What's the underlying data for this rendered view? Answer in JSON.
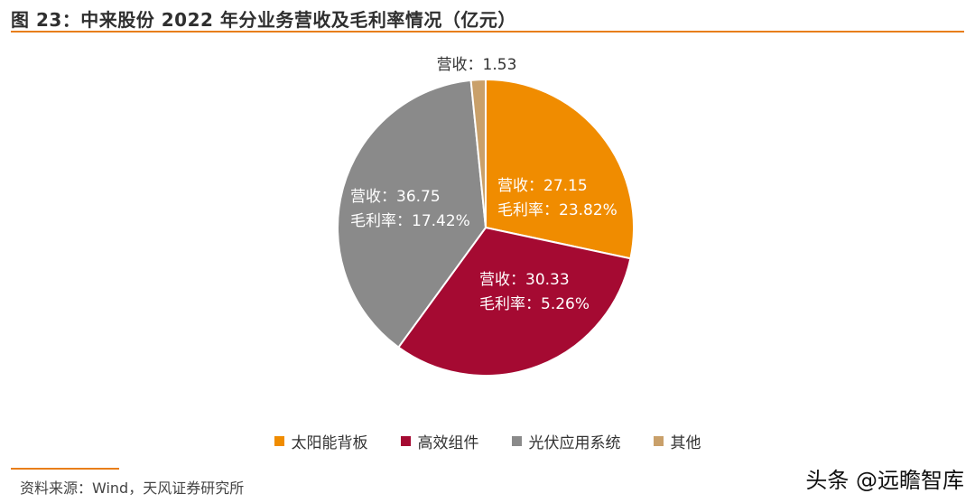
{
  "header": {
    "title": "图 23：中来股份 2022 年分业务营收及毛利率情况（亿元）"
  },
  "chart_data": {
    "type": "pie",
    "title": "图 23：中来股份 2022 年分业务营收及毛利率情况（亿元）",
    "revenue_prefix": "营收：",
    "margin_prefix": "毛利率：",
    "slices": [
      {
        "name": "太阳能背板",
        "revenue": 27.15,
        "revenue_text": "27.15",
        "margin_text": "23.82%",
        "color": "#f08c00"
      },
      {
        "name": "高效组件",
        "revenue": 30.33,
        "revenue_text": "30.33",
        "margin_text": "5.26%",
        "color": "#a50a32"
      },
      {
        "name": "光伏应用系统",
        "revenue": 36.75,
        "revenue_text": "36.75",
        "margin_text": "17.42%",
        "color": "#8a8a8a"
      },
      {
        "name": "其他",
        "revenue": 1.53,
        "revenue_text": "1.53",
        "margin_text": "",
        "color": "#c9a06a"
      }
    ],
    "legend_position": "bottom"
  },
  "footer": {
    "source": "资料来源：Wind，天风证券研究所",
    "watermark": "头条 @远瞻智库"
  }
}
